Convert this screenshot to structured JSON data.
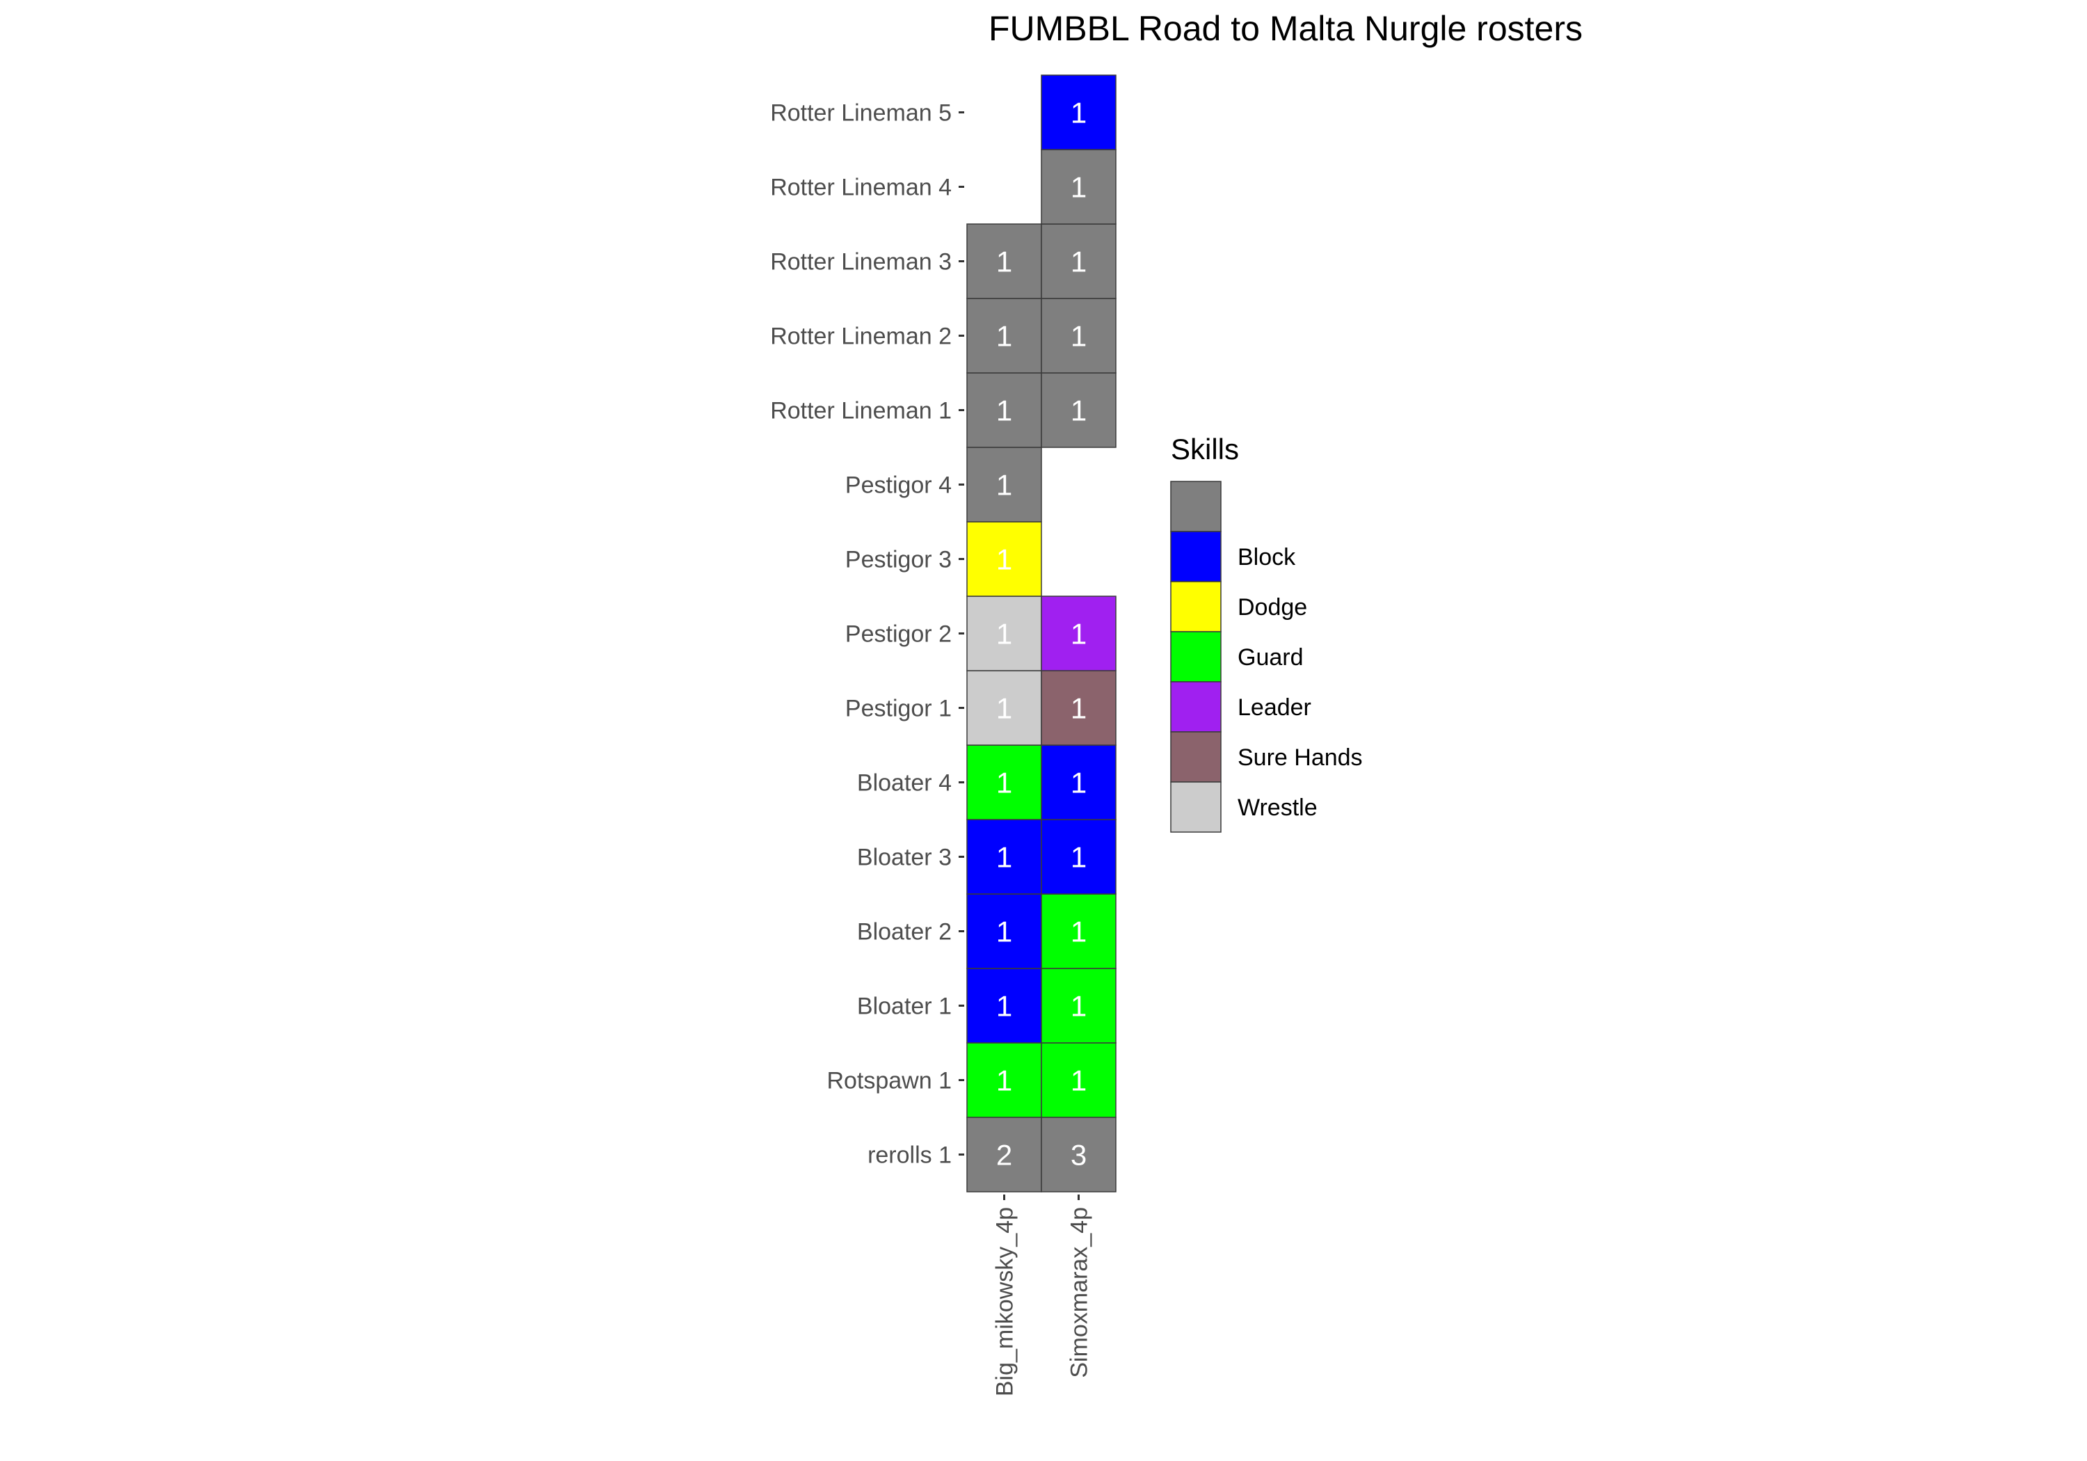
{
  "chart_data": {
    "type": "heatmap",
    "title": "FUMBBL Road to Malta Nurgle rosters",
    "legend_title": "Skills",
    "legend_position": "right",
    "grid": false,
    "x_categories": [
      "Big_mikowsky_4p",
      "Simoxmarax_4p"
    ],
    "y_categories": [
      "rerolls 1",
      "Rotspawn 1",
      "Bloater 1",
      "Bloater 2",
      "Bloater 3",
      "Bloater 4",
      "Pestigor 1",
      "Pestigor 2",
      "Pestigor 3",
      "Pestigor 4",
      "Rotter Lineman 1",
      "Rotter Lineman 2",
      "Rotter Lineman 3",
      "Rotter Lineman 4",
      "Rotter Lineman 5"
    ],
    "skills": [
      {
        "name": "",
        "color": "#7f7f7f"
      },
      {
        "name": "Block",
        "color": "#0000ff"
      },
      {
        "name": "Dodge",
        "color": "#ffff00"
      },
      {
        "name": "Guard",
        "color": "#00ff00"
      },
      {
        "name": "Leader",
        "color": "#a020f0"
      },
      {
        "name": "Sure Hands",
        "color": "#8b636c"
      },
      {
        "name": "Wrestle",
        "color": "#cccccc"
      }
    ],
    "cells": [
      {
        "x": "Big_mikowsky_4p",
        "y": "rerolls 1",
        "skill": "",
        "value": 2
      },
      {
        "x": "Big_mikowsky_4p",
        "y": "Rotspawn 1",
        "skill": "Guard",
        "value": 1
      },
      {
        "x": "Big_mikowsky_4p",
        "y": "Bloater 1",
        "skill": "Block",
        "value": 1
      },
      {
        "x": "Big_mikowsky_4p",
        "y": "Bloater 2",
        "skill": "Block",
        "value": 1
      },
      {
        "x": "Big_mikowsky_4p",
        "y": "Bloater 3",
        "skill": "Block",
        "value": 1
      },
      {
        "x": "Big_mikowsky_4p",
        "y": "Bloater 4",
        "skill": "Guard",
        "value": 1
      },
      {
        "x": "Big_mikowsky_4p",
        "y": "Pestigor 1",
        "skill": "Wrestle",
        "value": 1
      },
      {
        "x": "Big_mikowsky_4p",
        "y": "Pestigor 2",
        "skill": "Wrestle",
        "value": 1
      },
      {
        "x": "Big_mikowsky_4p",
        "y": "Pestigor 3",
        "skill": "Dodge",
        "value": 1
      },
      {
        "x": "Big_mikowsky_4p",
        "y": "Pestigor 4",
        "skill": "",
        "value": 1
      },
      {
        "x": "Big_mikowsky_4p",
        "y": "Rotter Lineman 1",
        "skill": "",
        "value": 1
      },
      {
        "x": "Big_mikowsky_4p",
        "y": "Rotter Lineman 2",
        "skill": "",
        "value": 1
      },
      {
        "x": "Big_mikowsky_4p",
        "y": "Rotter Lineman 3",
        "skill": "",
        "value": 1
      },
      {
        "x": "Simoxmarax_4p",
        "y": "rerolls 1",
        "skill": "",
        "value": 3
      },
      {
        "x": "Simoxmarax_4p",
        "y": "Rotspawn 1",
        "skill": "Guard",
        "value": 1
      },
      {
        "x": "Simoxmarax_4p",
        "y": "Bloater 1",
        "skill": "Guard",
        "value": 1
      },
      {
        "x": "Simoxmarax_4p",
        "y": "Bloater 2",
        "skill": "Guard",
        "value": 1
      },
      {
        "x": "Simoxmarax_4p",
        "y": "Bloater 3",
        "skill": "Block",
        "value": 1
      },
      {
        "x": "Simoxmarax_4p",
        "y": "Bloater 4",
        "skill": "Block",
        "value": 1
      },
      {
        "x": "Simoxmarax_4p",
        "y": "Pestigor 1",
        "skill": "Sure Hands",
        "value": 1
      },
      {
        "x": "Simoxmarax_4p",
        "y": "Pestigor 2",
        "skill": "Leader",
        "value": 1
      },
      {
        "x": "Simoxmarax_4p",
        "y": "Rotter Lineman 1",
        "skill": "",
        "value": 1
      },
      {
        "x": "Simoxmarax_4p",
        "y": "Rotter Lineman 2",
        "skill": "",
        "value": 1
      },
      {
        "x": "Simoxmarax_4p",
        "y": "Rotter Lineman 3",
        "skill": "",
        "value": 1
      },
      {
        "x": "Simoxmarax_4p",
        "y": "Rotter Lineman 4",
        "skill": "",
        "value": 1
      },
      {
        "x": "Simoxmarax_4p",
        "y": "Rotter Lineman 5",
        "skill": "Block",
        "value": 1
      }
    ]
  }
}
